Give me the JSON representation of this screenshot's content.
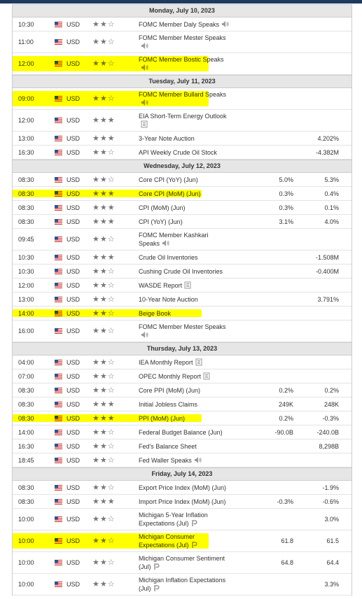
{
  "calendar": {
    "days": [
      {
        "date": "Monday, July 10, 2023",
        "events": [
          {
            "time": "10:30",
            "currency": "USD",
            "importance": 2,
            "event": "FOMC Member Daly Speaks",
            "icon": "speech",
            "forecast": null,
            "previous": null
          },
          {
            "time": "11:00",
            "currency": "USD",
            "importance": 2,
            "event": "FOMC Member Mester Speaks",
            "icon": "speech",
            "forecast": null,
            "previous": null
          },
          {
            "time": "12:00",
            "currency": "USD",
            "importance": 2,
            "event": "FOMC Member Bostic Speaks",
            "icon": "speech",
            "forecast": null,
            "previous": null,
            "highlighted": true
          }
        ]
      },
      {
        "date": "Tuesday, July 11, 2023",
        "events": [
          {
            "time": "09:00",
            "currency": "USD",
            "importance": 2,
            "event": "FOMC Member Bullard Speaks",
            "icon": "speech",
            "forecast": null,
            "previous": null,
            "highlighted": true
          },
          {
            "time": "12:00",
            "currency": "USD",
            "importance": 3,
            "event": "EIA Short-Term Energy Outlook",
            "icon": "report",
            "forecast": null,
            "previous": null
          },
          {
            "time": "13:00",
            "currency": "USD",
            "importance": 3,
            "event": "3-Year Note Auction",
            "forecast": null,
            "previous": "4.202%"
          },
          {
            "time": "16:30",
            "currency": "USD",
            "importance": 2,
            "event": "API Weekly Crude Oil Stock",
            "forecast": null,
            "previous": "-4.382M"
          }
        ]
      },
      {
        "date": "Wednesday, July 12, 2023",
        "events": [
          {
            "time": "08:30",
            "currency": "USD",
            "importance": 2,
            "event": "Core CPI (YoY) (Jun)",
            "forecast": "5.0%",
            "previous": "5.3%"
          },
          {
            "time": "08:30",
            "currency": "USD",
            "importance": 3,
            "event": "Core CPI (MoM) (Jun)",
            "forecast": "0.3%",
            "previous": "0.4%",
            "highlighted": true
          },
          {
            "time": "08:30",
            "currency": "USD",
            "importance": 3,
            "event": "CPI (MoM) (Jun)",
            "forecast": "0.3%",
            "previous": "0.1%"
          },
          {
            "time": "08:30",
            "currency": "USD",
            "importance": 3,
            "event": "CPI (YoY) (Jun)",
            "forecast": "3.1%",
            "previous": "4.0%"
          },
          {
            "time": "09:45",
            "currency": "USD",
            "importance": 2,
            "event": "FOMC Member Kashkari Speaks",
            "icon": "speech",
            "forecast": null,
            "previous": null
          },
          {
            "time": "10:30",
            "currency": "USD",
            "importance": 3,
            "event": "Crude Oil Inventories",
            "forecast": null,
            "previous": "-1.508M"
          },
          {
            "time": "10:30",
            "currency": "USD",
            "importance": 2,
            "event": "Cushing Crude Oil Inventories",
            "forecast": null,
            "previous": "-0.400M"
          },
          {
            "time": "12:00",
            "currency": "USD",
            "importance": 2,
            "event": "WASDE Report",
            "icon": "report",
            "forecast": null,
            "previous": null
          },
          {
            "time": "13:00",
            "currency": "USD",
            "importance": 2,
            "event": "10-Year Note Auction",
            "forecast": null,
            "previous": "3.791%"
          },
          {
            "time": "14:00",
            "currency": "USD",
            "importance": 2,
            "event": "Beige Book",
            "forecast": null,
            "previous": null,
            "highlighted": true
          },
          {
            "time": "16:00",
            "currency": "USD",
            "importance": 2,
            "event": "FOMC Member Mester Speaks",
            "icon": "speech",
            "forecast": null,
            "previous": null
          }
        ]
      },
      {
        "date": "Thursday, July 13, 2023",
        "events": [
          {
            "time": "04:00",
            "currency": "USD",
            "importance": 2,
            "event": "IEA Monthly Report",
            "icon": "report",
            "forecast": null,
            "previous": null
          },
          {
            "time": "07:00",
            "currency": "USD",
            "importance": 2,
            "event": "OPEC Monthly Report",
            "icon": "report",
            "forecast": null,
            "previous": null
          },
          {
            "time": "08:30",
            "currency": "USD",
            "importance": 2,
            "event": "Core PPI (MoM) (Jun)",
            "forecast": "0.2%",
            "previous": "0.2%"
          },
          {
            "time": "08:30",
            "currency": "USD",
            "importance": 3,
            "event": "Initial Jobless Claims",
            "forecast": "249K",
            "previous": "248K"
          },
          {
            "time": "08:30",
            "currency": "USD",
            "importance": 3,
            "event": "PPI (MoM) (Jun)",
            "forecast": "0.2%",
            "previous": "-0.3%",
            "highlighted": true
          },
          {
            "time": "14:00",
            "currency": "USD",
            "importance": 2,
            "event": "Federal Budget Balance (Jun)",
            "forecast": "-90.0B",
            "previous": "-240.0B"
          },
          {
            "time": "16:30",
            "currency": "USD",
            "importance": 2,
            "event": "Fed's Balance Sheet",
            "forecast": null,
            "previous": "8,298B"
          },
          {
            "time": "18:45",
            "currency": "USD",
            "importance": 2,
            "event": "Fed Waller Speaks",
            "icon": "speech",
            "forecast": null,
            "previous": null
          }
        ]
      },
      {
        "date": "Friday, July 14, 2023",
        "events": [
          {
            "time": "08:30",
            "currency": "USD",
            "importance": 2,
            "event": "Export Price Index (MoM) (Jun)",
            "forecast": null,
            "previous": "-1.9%"
          },
          {
            "time": "08:30",
            "currency": "USD",
            "importance": 3,
            "event": "Import Price Index (MoM) (Jun)",
            "forecast": "-0.3%",
            "previous": "-0.6%"
          },
          {
            "time": "10:00",
            "currency": "USD",
            "importance": 2,
            "event": "Michigan 5-Year Inflation Expectations (Jul)",
            "icon": "prelim",
            "forecast": null,
            "previous": "3.0%"
          },
          {
            "time": "10:00",
            "currency": "USD",
            "importance": 2,
            "event": "Michigan Consumer Expectations (Jul)",
            "icon": "prelim",
            "forecast": "61.8",
            "previous": "61.5",
            "highlighted": true
          },
          {
            "time": "10:00",
            "currency": "USD",
            "importance": 2,
            "event": "Michigan Consumer Sentiment (Jul)",
            "icon": "prelim",
            "forecast": "64.8",
            "previous": "64.4"
          },
          {
            "time": "10:00",
            "currency": "USD",
            "importance": 2,
            "event": "Michigan Inflation Expectations (Jul)",
            "icon": "prelim",
            "forecast": null,
            "previous": "3.3%"
          }
        ]
      }
    ]
  }
}
